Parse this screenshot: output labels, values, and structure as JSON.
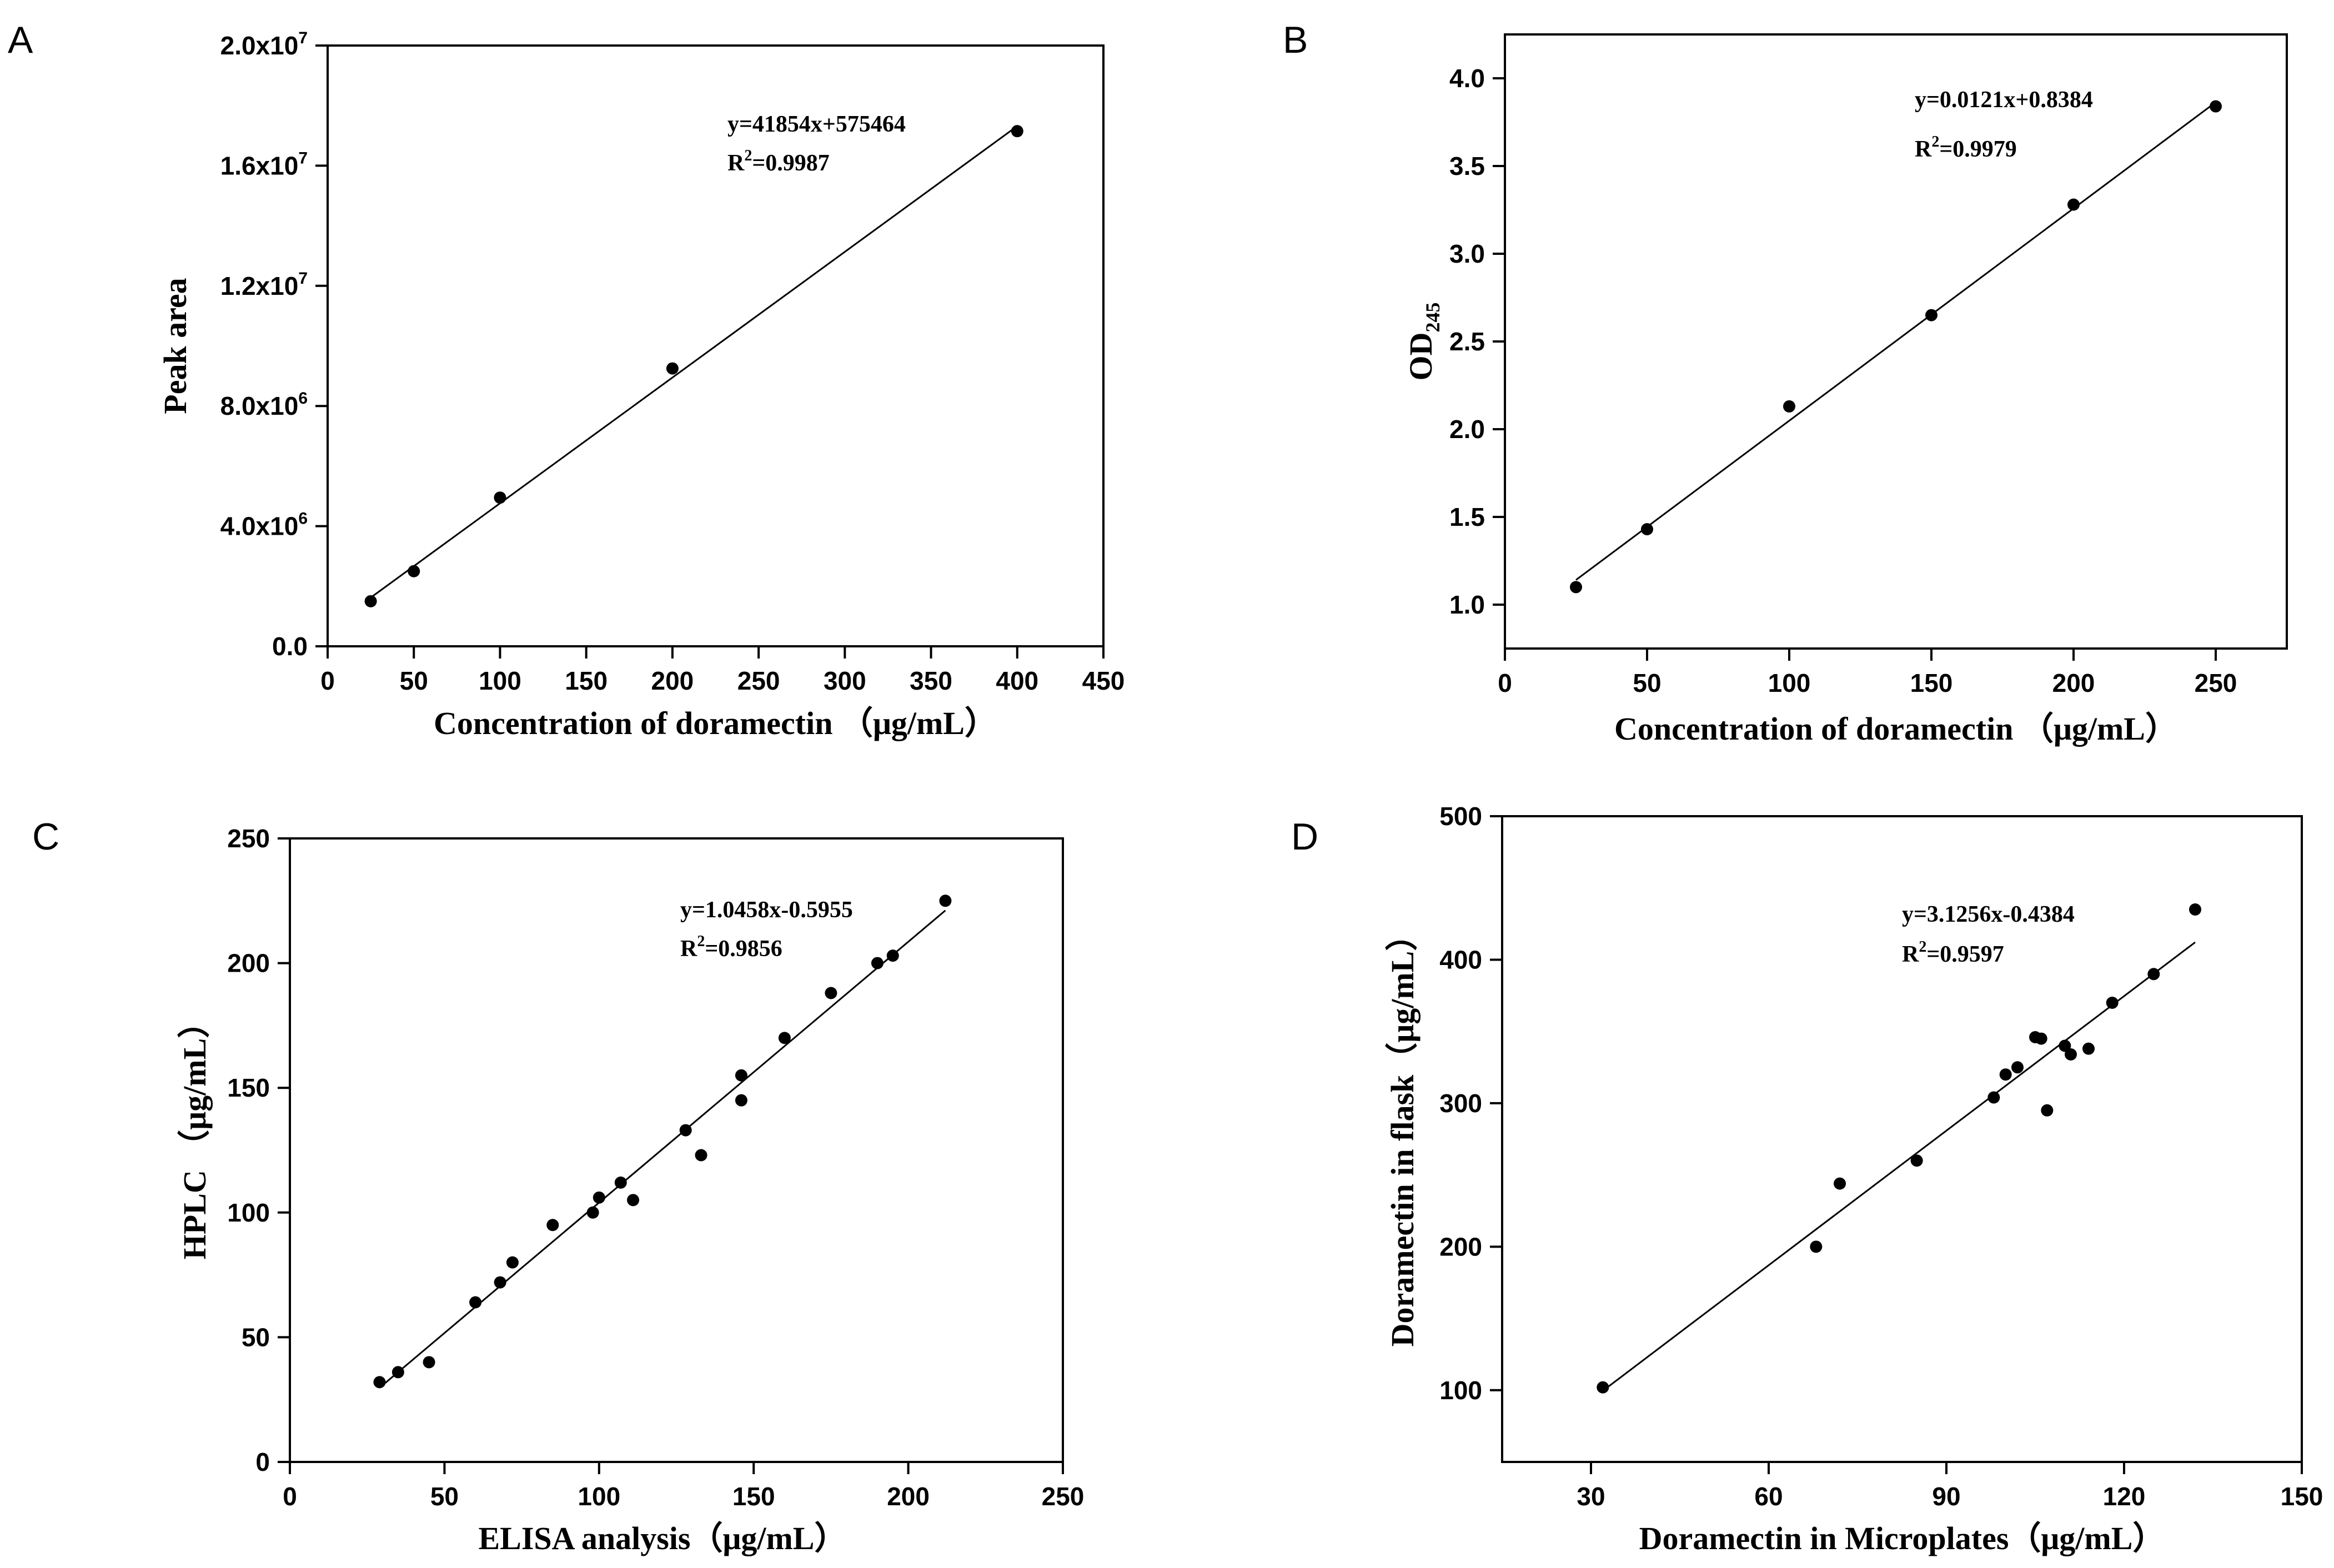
{
  "chart_data": [
    {
      "panel": "A",
      "type": "scatter",
      "xlabel": "Concentration of  doramectin （μg/mL）",
      "ylabel": "Peak area",
      "xlim": [
        0,
        450
      ],
      "ylim": [
        0,
        20000000
      ],
      "xticks": [
        0,
        50,
        100,
        150,
        200,
        250,
        300,
        350,
        400,
        450
      ],
      "xtick_labels": [
        "0",
        "50",
        "100",
        "150",
        "200",
        "250",
        "300",
        "350",
        "400",
        "450"
      ],
      "yticks": [
        0,
        4000000,
        8000000,
        12000000,
        16000000,
        20000000
      ],
      "ytick_labels": [
        {
          "base": "0.0",
          "exp": ""
        },
        {
          "base": "4.0x10",
          "exp": "6"
        },
        {
          "base": "8.0x10",
          "exp": "6"
        },
        {
          "base": "1.2x10",
          "exp": "7"
        },
        {
          "base": "1.6x10",
          "exp": "7"
        },
        {
          "base": "2.0x10",
          "exp": "7"
        }
      ],
      "x": [
        25,
        50,
        100,
        200,
        400
      ],
      "y": [
        1500000,
        2500000,
        4950000,
        9250000,
        17150000
      ],
      "fit": {
        "slope": 41854,
        "intercept": 575464,
        "x_range": [
          25,
          400
        ]
      },
      "equation": "y=41854x+575464",
      "r2_label": "R",
      "r2_sup": "2",
      "r2_value": "=0.9987",
      "grid": false
    },
    {
      "panel": "B",
      "type": "scatter",
      "xlabel": "Concentration of  doramectin （μg/mL）",
      "ylabel_main": "OD",
      "ylabel_sub": "245",
      "xlim": [
        0,
        275
      ],
      "ylim": [
        0.75,
        4.25
      ],
      "xticks": [
        0,
        50,
        100,
        150,
        200,
        250
      ],
      "xtick_labels": [
        "0",
        "50",
        "100",
        "150",
        "200",
        "250"
      ],
      "yticks": [
        1.0,
        1.5,
        2.0,
        2.5,
        3.0,
        3.5,
        4.0
      ],
      "ytick_labels": [
        "1.0",
        "1.5",
        "2.0",
        "2.5",
        "3.0",
        "3.5",
        "4.0"
      ],
      "x": [
        25,
        50,
        100,
        150,
        200,
        250
      ],
      "y": [
        1.1,
        1.43,
        2.13,
        2.65,
        3.28,
        3.84
      ],
      "fit": {
        "slope": 0.0121,
        "intercept": 0.8384,
        "x_range": [
          25,
          250
        ]
      },
      "equation": "y=0.0121x+0.8384",
      "r2_label": "R",
      "r2_sup": "2",
      "r2_value": "=0.9979",
      "grid": false
    },
    {
      "panel": "C",
      "type": "scatter",
      "xlabel": "ELISA analysis（μg/mL）",
      "ylabel": "HPLC （μg/mL）",
      "xlim": [
        0,
        250
      ],
      "ylim": [
        0,
        250
      ],
      "xticks": [
        0,
        50,
        100,
        150,
        200,
        250
      ],
      "xtick_labels": [
        "0",
        "50",
        "100",
        "150",
        "200",
        "250"
      ],
      "yticks": [
        0,
        50,
        100,
        150,
        200,
        250
      ],
      "ytick_labels": [
        "0",
        "50",
        "100",
        "150",
        "200",
        "250"
      ],
      "x": [
        29,
        35,
        45,
        60,
        68,
        72,
        85,
        98,
        100,
        107,
        111,
        128,
        133,
        146,
        146,
        160,
        175,
        190,
        195,
        212
      ],
      "y": [
        32,
        36,
        40,
        64,
        72,
        80,
        95,
        100,
        106,
        112,
        105,
        133,
        123,
        155,
        145,
        170,
        188,
        200,
        203,
        225
      ],
      "fit": {
        "slope": 1.0458,
        "intercept": -0.5955,
        "x_range": [
          29,
          212
        ]
      },
      "equation": "y=1.0458x-0.5955",
      "r2_label": "R",
      "r2_sup": "2",
      "r2_value": "=0.9856",
      "grid": false
    },
    {
      "panel": "D",
      "type": "scatter",
      "xlabel": "Doramectin in Microplates（μg/mL）",
      "ylabel": "Doramectin in flask（μg/mL）",
      "xlim": [
        15,
        150
      ],
      "ylim": [
        50,
        500
      ],
      "xticks": [
        30,
        60,
        90,
        120,
        150
      ],
      "xtick_labels": [
        "30",
        "60",
        "90",
        "120",
        "150"
      ],
      "yticks": [
        100,
        200,
        300,
        400,
        500
      ],
      "ytick_labels": [
        "100",
        "200",
        "300",
        "400",
        "500"
      ],
      "x": [
        32,
        68,
        72,
        85,
        98,
        100,
        102,
        105,
        106,
        107,
        110,
        111,
        114,
        118,
        125,
        132
      ],
      "y": [
        102,
        200,
        244,
        260,
        304,
        320,
        325,
        346,
        345,
        295,
        340,
        334,
        338,
        370,
        390,
        435
      ],
      "fit": {
        "slope": 3.1256,
        "intercept": -0.4384,
        "x_range": [
          32,
          132
        ]
      },
      "equation": "y=3.1256x-0.4384",
      "r2_label": "R",
      "r2_sup": "2",
      "r2_value": "=0.9597",
      "grid": false
    }
  ]
}
